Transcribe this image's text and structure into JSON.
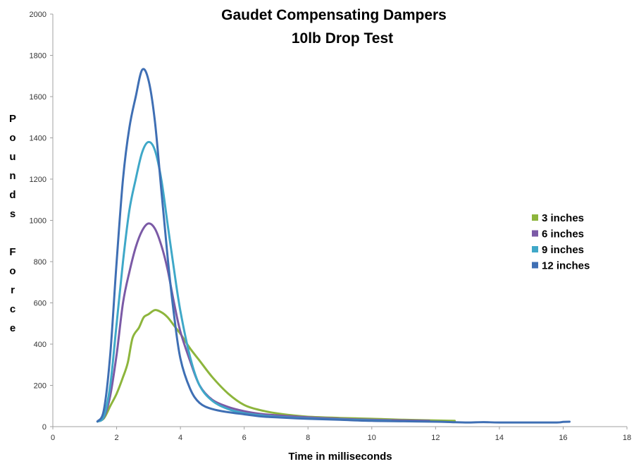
{
  "chart_data": {
    "type": "line",
    "title": "Gaudet Compensating Dampers",
    "subtitle": "10lb Drop Test",
    "xlabel": "Time in milliseconds",
    "ylabel": "Pounds Force",
    "ylabel_lines": [
      "P",
      "o",
      "u",
      "n",
      "d",
      "s",
      "",
      "F",
      "o",
      "r",
      "c",
      "e"
    ],
    "xlim": [
      0,
      18
    ],
    "ylim": [
      0,
      2000
    ],
    "x_ticks": [
      0,
      2,
      4,
      6,
      8,
      10,
      12,
      14,
      16,
      18
    ],
    "y_ticks": [
      0,
      200,
      400,
      600,
      800,
      1000,
      1200,
      1400,
      1600,
      1800,
      2000
    ],
    "grid": false,
    "legend_position": "right",
    "series": [
      {
        "name": "3 inches",
        "color": "#8DB53C",
        "points": [
          [
            1.4,
            25
          ],
          [
            1.6,
            40
          ],
          [
            1.8,
            100
          ],
          [
            2.0,
            160
          ],
          [
            2.2,
            240
          ],
          [
            2.35,
            310
          ],
          [
            2.5,
            430
          ],
          [
            2.7,
            480
          ],
          [
            2.85,
            530
          ],
          [
            3.0,
            545
          ],
          [
            3.2,
            565
          ],
          [
            3.4,
            555
          ],
          [
            3.6,
            530
          ],
          [
            3.8,
            490
          ],
          [
            4.0,
            450
          ],
          [
            4.3,
            380
          ],
          [
            4.6,
            320
          ],
          [
            5.0,
            240
          ],
          [
            5.5,
            160
          ],
          [
            6.0,
            105
          ],
          [
            6.5,
            80
          ],
          [
            7.0,
            65
          ],
          [
            7.5,
            55
          ],
          [
            8.0,
            48
          ],
          [
            9.0,
            42
          ],
          [
            10.0,
            38
          ],
          [
            11.0,
            33
          ],
          [
            12.0,
            30
          ],
          [
            12.6,
            28
          ]
        ]
      },
      {
        "name": "6 inches",
        "color": "#7B5AA6",
        "points": [
          [
            1.4,
            25
          ],
          [
            1.6,
            45
          ],
          [
            1.8,
            150
          ],
          [
            2.0,
            350
          ],
          [
            2.2,
            600
          ],
          [
            2.4,
            750
          ],
          [
            2.6,
            870
          ],
          [
            2.8,
            950
          ],
          [
            3.0,
            985
          ],
          [
            3.2,
            960
          ],
          [
            3.4,
            880
          ],
          [
            3.6,
            760
          ],
          [
            3.8,
            600
          ],
          [
            4.0,
            460
          ],
          [
            4.3,
            320
          ],
          [
            4.6,
            200
          ],
          [
            5.0,
            130
          ],
          [
            5.5,
            95
          ],
          [
            6.0,
            75
          ],
          [
            6.5,
            62
          ],
          [
            7.0,
            55
          ],
          [
            8.0,
            45
          ],
          [
            9.0,
            38
          ],
          [
            10.0,
            33
          ],
          [
            11.0,
            30
          ],
          [
            11.8,
            28
          ]
        ]
      },
      {
        "name": "9 inches",
        "color": "#3FA8C8",
        "points": [
          [
            1.4,
            25
          ],
          [
            1.6,
            50
          ],
          [
            1.8,
            200
          ],
          [
            2.0,
            500
          ],
          [
            2.2,
            800
          ],
          [
            2.4,
            1050
          ],
          [
            2.6,
            1200
          ],
          [
            2.8,
            1330
          ],
          [
            3.0,
            1380
          ],
          [
            3.2,
            1340
          ],
          [
            3.4,
            1200
          ],
          [
            3.6,
            980
          ],
          [
            3.8,
            760
          ],
          [
            4.0,
            560
          ],
          [
            4.3,
            340
          ],
          [
            4.6,
            200
          ],
          [
            5.0,
            125
          ],
          [
            5.5,
            85
          ],
          [
            6.0,
            65
          ],
          [
            6.5,
            55
          ],
          [
            7.0,
            48
          ],
          [
            8.0,
            40
          ],
          [
            9.0,
            35
          ],
          [
            10.0,
            30
          ],
          [
            10.6,
            28
          ]
        ]
      },
      {
        "name": "12 inches",
        "color": "#3F6FB4",
        "points": [
          [
            1.4,
            25
          ],
          [
            1.6,
            80
          ],
          [
            1.8,
            350
          ],
          [
            2.0,
            800
          ],
          [
            2.2,
            1200
          ],
          [
            2.4,
            1450
          ],
          [
            2.6,
            1600
          ],
          [
            2.8,
            1730
          ],
          [
            3.0,
            1680
          ],
          [
            3.2,
            1480
          ],
          [
            3.4,
            1150
          ],
          [
            3.6,
            820
          ],
          [
            3.8,
            540
          ],
          [
            4.0,
            330
          ],
          [
            4.3,
            185
          ],
          [
            4.6,
            115
          ],
          [
            5.0,
            85
          ],
          [
            5.5,
            70
          ],
          [
            6.0,
            60
          ],
          [
            6.5,
            50
          ],
          [
            7.0,
            45
          ],
          [
            8.0,
            38
          ],
          [
            9.0,
            33
          ],
          [
            10.0,
            28
          ],
          [
            11.0,
            26
          ],
          [
            12.0,
            24
          ],
          [
            12.5,
            22
          ],
          [
            13.0,
            20
          ],
          [
            13.5,
            22
          ],
          [
            14.0,
            20
          ],
          [
            15.0,
            20
          ],
          [
            15.8,
            20
          ],
          [
            16.0,
            23
          ],
          [
            16.2,
            24
          ]
        ]
      }
    ]
  }
}
